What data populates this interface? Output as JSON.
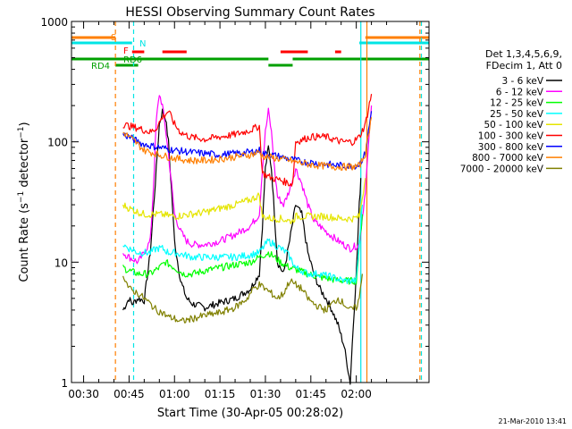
{
  "chart_data": {
    "type": "line",
    "title": "HESSI Observing Summary Count Rates",
    "xlabel": "Start Time (30-Apr-05 00:28:02)",
    "ylabel": "Count Rate (s⁻¹ detector⁻¹)",
    "ylabel_parts": {
      "pre": "Count Rate (s",
      "sup1": "−1",
      "mid": " detector",
      "sup2": "−1",
      "post": ")"
    },
    "yscale": "log",
    "xlim_min": [
      26,
      144
    ],
    "ylim": [
      1,
      1000
    ],
    "x_ticks_min": [
      30,
      45,
      60,
      75,
      90,
      105,
      120
    ],
    "x_tick_labels": [
      "00:30",
      "00:45",
      "01:00",
      "01:15",
      "01:30",
      "01:45",
      "02:00"
    ],
    "y_ticks": [
      1,
      10,
      100,
      1000
    ],
    "y_tick_labels": [
      "1",
      "10",
      "100",
      "1000"
    ],
    "legend_header": [
      "Det 1,3,4,5,6,9,",
      "FDecim 1, Att 0"
    ],
    "legend_position": "right",
    "footer_date": "21-Mar-2010 13:41",
    "flag_labels": {
      "S": "S",
      "N": "N",
      "F": "F",
      "RDE": "RD6",
      "RD4": "RD4"
    },
    "flags": [
      {
        "label": "S",
        "color": "#ff7f00",
        "segments": [
          [
            26,
            40.5
          ],
          [
            123,
            144
          ]
        ]
      },
      {
        "label": "N",
        "color": "#00e5e5",
        "segments": [
          [
            26,
            46
          ],
          [
            121,
            144
          ]
        ]
      },
      {
        "label": "F",
        "color": "#ff0000",
        "segments": [
          [
            46,
            50
          ],
          [
            56,
            64
          ],
          [
            95,
            104
          ],
          [
            113,
            115
          ]
        ]
      },
      {
        "label": "RD6",
        "color": "#00a000",
        "segments": [
          [
            26,
            91
          ],
          [
            99,
            144
          ]
        ]
      },
      {
        "label": "RD4",
        "color": "#00a000",
        "segments": [
          [
            40.5,
            48
          ],
          [
            91,
            99
          ]
        ]
      }
    ],
    "vlines": [
      {
        "x": 40.5,
        "color": "#ff7f00",
        "dashed": true
      },
      {
        "x": 46.5,
        "color": "#00e5e5",
        "dashed": true
      },
      {
        "x": 121.5,
        "color": "#00e5e5",
        "dashed": false
      },
      {
        "x": 123.5,
        "color": "#ff7f00",
        "dashed": false
      },
      {
        "x": 141.5,
        "color": "#00e5e5",
        "dashed": true
      },
      {
        "x": 141.0,
        "color": "#ff7f00",
        "dashed": true
      }
    ],
    "series": [
      {
        "name": "3 - 6 keV",
        "color": "#000000",
        "x": [
          43,
          45,
          46,
          48,
          50,
          52,
          54,
          55,
          56,
          57,
          58,
          59,
          60,
          62,
          64,
          66,
          70,
          75,
          80,
          85,
          88,
          89,
          90,
          91,
          92,
          93,
          94,
          96,
          98,
          100,
          102,
          104,
          106,
          108,
          110,
          112,
          114,
          116,
          118,
          119,
          120,
          121,
          121.5
        ],
        "y": [
          4,
          5,
          4.5,
          5,
          4.8,
          12,
          60,
          140,
          180,
          160,
          100,
          40,
          15,
          7,
          5,
          4.5,
          4.2,
          4.6,
          5,
          6,
          8,
          20,
          60,
          90,
          60,
          25,
          10,
          8,
          15,
          30,
          25,
          12,
          8,
          6,
          5,
          4,
          3,
          2,
          1,
          3,
          8,
          30,
          50
        ]
      },
      {
        "name": "6 - 12 keV",
        "color": "#ff00ff",
        "x": [
          43,
          45,
          48,
          50,
          52,
          53,
          54,
          55,
          56,
          57,
          58,
          59,
          60,
          62,
          64,
          66,
          70,
          75,
          80,
          85,
          88,
          89,
          90,
          91,
          92,
          93,
          94,
          96,
          98,
          100,
          102,
          104,
          106,
          110,
          114,
          118,
          121,
          123,
          125
        ],
        "y": [
          12,
          11,
          10,
          12,
          15,
          40,
          150,
          250,
          200,
          130,
          80,
          45,
          25,
          18,
          15,
          14,
          14,
          15,
          17,
          20,
          25,
          60,
          120,
          180,
          120,
          60,
          35,
          30,
          40,
          60,
          45,
          30,
          22,
          18,
          15,
          13,
          14,
          40,
          200
        ]
      },
      {
        "name": "12 - 25 keV",
        "color": "#00ff00",
        "x": [
          43,
          45,
          48,
          50,
          52,
          55,
          57,
          60,
          63,
          66,
          70,
          75,
          80,
          85,
          88,
          91,
          93,
          95,
          98,
          101,
          104,
          108,
          112,
          116,
          120,
          122
        ],
        "y": [
          9,
          8.5,
          8,
          8,
          8,
          9,
          10,
          9,
          8,
          8,
          8.5,
          9,
          9.5,
          10,
          11,
          12,
          11,
          10,
          9,
          8.5,
          8,
          7.5,
          7.2,
          7,
          7,
          25
        ]
      },
      {
        "name": "25 - 50 keV",
        "color": "#00ffff",
        "x": [
          43,
          45,
          48,
          50,
          52,
          54,
          56,
          58,
          60,
          63,
          66,
          70,
          75,
          80,
          85,
          88,
          89,
          90,
          91,
          93,
          95,
          97,
          98,
          99,
          100,
          102,
          104,
          108,
          112,
          116,
          120,
          122
        ],
        "y": [
          14,
          13,
          12,
          12,
          12,
          13,
          13,
          12,
          12,
          11.5,
          11,
          11,
          11,
          11,
          11.5,
          12,
          13,
          14,
          15,
          14,
          13,
          12,
          11,
          10,
          9,
          8.5,
          8,
          8,
          7.5,
          7,
          7,
          30
        ]
      },
      {
        "name": "50 - 100 keV",
        "color": "#e5e500",
        "x": [
          43,
          45,
          48,
          50,
          55,
          60,
          65,
          70,
          75,
          80,
          85,
          88,
          89,
          92,
          95,
          98,
          99,
          100,
          105,
          110,
          115,
          119,
          121,
          123
        ],
        "y": [
          30,
          28,
          26,
          25,
          25,
          24,
          25,
          26,
          28,
          30,
          33,
          36,
          24,
          23,
          23,
          22,
          22,
          24,
          24,
          24,
          23,
          23,
          24,
          50
        ]
      },
      {
        "name": "100 - 300 keV",
        "color": "#ff0000",
        "x": [
          43,
          45,
          48,
          50,
          52,
          54,
          56,
          58,
          60,
          62,
          65,
          70,
          75,
          80,
          85,
          88,
          89,
          92,
          95,
          98,
          99,
          100,
          105,
          110,
          115,
          119,
          121,
          123,
          125
        ],
        "y": [
          140,
          135,
          130,
          125,
          120,
          130,
          160,
          180,
          140,
          120,
          110,
          105,
          110,
          115,
          125,
          135,
          55,
          50,
          48,
          45,
          45,
          100,
          110,
          110,
          100,
          100,
          110,
          140,
          250
        ]
      },
      {
        "name": "300 - 800 keV",
        "color": "#0000ff",
        "x": [
          43,
          45,
          48,
          50,
          55,
          60,
          65,
          70,
          75,
          80,
          85,
          88,
          89,
          92,
          95,
          98,
          100,
          103,
          106,
          110,
          113,
          116,
          119,
          121,
          123,
          125
        ],
        "y": [
          115,
          110,
          100,
          95,
          90,
          85,
          82,
          80,
          78,
          80,
          82,
          85,
          80,
          78,
          75,
          72,
          70,
          68,
          67,
          65,
          64,
          63,
          63,
          65,
          80,
          180
        ]
      },
      {
        "name": "800 - 7000 keV",
        "color": "#ff7f00",
        "x": [
          43,
          45,
          48,
          50,
          55,
          60,
          65,
          70,
          75,
          80,
          85,
          88,
          89,
          92,
          95,
          98,
          100,
          103,
          106,
          110,
          113,
          116,
          119,
          121,
          123,
          125
        ],
        "y": [
          120,
          110,
          95,
          85,
          78,
          73,
          70,
          70,
          72,
          75,
          78,
          82,
          76,
          74,
          72,
          70,
          68,
          66,
          64,
          63,
          62,
          62,
          62,
          63,
          80,
          160
        ]
      },
      {
        "name": "7000 - 20000 keV",
        "color": "#808000",
        "x": [
          43,
          45,
          48,
          50,
          52,
          54,
          56,
          58,
          60,
          62,
          64,
          66,
          70,
          75,
          80,
          84,
          86,
          88,
          90,
          92,
          94,
          96,
          98,
          100,
          102,
          104,
          106,
          108,
          110,
          112,
          114,
          116,
          118,
          120,
          121,
          122
        ],
        "y": [
          8,
          6,
          5.5,
          5,
          4.5,
          4,
          3.8,
          3.5,
          3.4,
          3.2,
          3.3,
          3.4,
          3.6,
          3.8,
          4.2,
          5,
          6,
          6.5,
          6,
          5.5,
          5,
          5.5,
          7,
          6.5,
          6,
          5,
          4.5,
          4.2,
          4,
          4.5,
          5,
          4.5,
          4,
          4.2,
          5,
          8
        ]
      }
    ]
  }
}
